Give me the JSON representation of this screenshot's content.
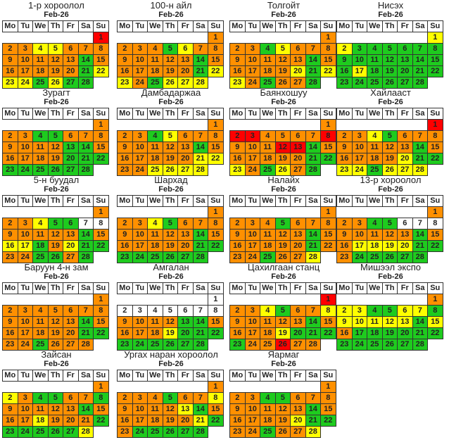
{
  "legend_colors": {
    "O": "#ff9000",
    "Y": "#ffff00",
    "G": "#1ecb1e",
    "R": "#ff0000",
    "W": "#ffffff"
  },
  "weekdays": [
    "Mo",
    "Tu",
    "We",
    "Th",
    "Fr",
    "Sa",
    "Su"
  ],
  "day_numbers": [
    "1",
    "2",
    "3",
    "4",
    "5",
    "6",
    "7",
    "8",
    "9",
    "10",
    "11",
    "12",
    "13",
    "14",
    "15",
    "16",
    "17",
    "18",
    "19",
    "20",
    "21",
    "22",
    "23",
    "24",
    "25",
    "26",
    "27",
    "28"
  ],
  "calendars": [
    {
      "name": "1-р хороолол",
      "month": "Feb-26",
      "colors": "ROOYYOOOOOOOOGOOOOOOGYYYGYGG"
    },
    {
      "name": "100-н айл",
      "month": "Feb-26",
      "colors": "OOOOGYOOOOOOOGOOOOOOGYYOGYYY"
    },
    {
      "name": "Толгойт",
      "month": "Feb-26",
      "colors": "OOOGYOOOOOOOOGOOOOOYGYYOGOOG"
    },
    {
      "name": "Нисэх",
      "month": "Feb-26",
      "colors": "YYGGGGGGGGGGGGGGYGGGGGGGGGGG"
    },
    {
      "name": "Зурагт",
      "month": "Feb-26",
      "colors": "OOOGGOOOOOOOGGOOOOOGGGGGGGGG"
    },
    {
      "name": "Дамбадаржаа",
      "month": "Feb-26",
      "colors": "OOOGYOOOOOOOOGOOOOOOYYOOYYYY"
    },
    {
      "name": "Баянхошуу",
      "month": "Feb-26",
      "colors": "ORROOOOROOORRGOOOOOOGGYOGYOG"
    },
    {
      "name": "Хайлааст",
      "month": "Feb-26",
      "colors": "ROOYGOOOOOOOOGOOOOOYGGYYGYYY"
    },
    {
      "name": "5-н буудал",
      "month": "Feb-26",
      "colors": "OOOYGGWWOOOOOGOYYGOYGGOOGGOG"
    },
    {
      "name": "Шархад",
      "month": "Feb-26",
      "colors": "OOOYGOOOOOOOOGOOOOOOGGGGGGGG"
    },
    {
      "name": "Налайх",
      "month": "Feb-26",
      "colors": "OOOOGOOOOOOOOGOOOOOOGOOOGOOY"
    },
    {
      "name": "13-р хороолол",
      "month": "Feb-26",
      "colors": "OOOGGWWWOOOOOGOOYYYYGGOGGGGG"
    },
    {
      "name": "Баруун 4-н зам",
      "month": "Feb-26",
      "colors": "OOOOOOOOOOOOOGOOOOOOGGOOGOOO"
    },
    {
      "name": "Амгалан",
      "month": "Feb-26",
      "colors": "WWWWWWWWOOOOGGOOOOYGGGGGGGGG"
    },
    {
      "name": "Цахилгаан станц",
      "month": "Feb-26",
      "colors": "ROOYGOOYOOOOOGOOOOYGGGGOOROO"
    },
    {
      "name": "Мишээл экспо",
      "month": "Feb-26",
      "colors": "OYYGGYYGYYYYYGYOGGGGGGGGGGGG"
    },
    {
      "name": "Зайсан",
      "month": "Feb-26",
      "colors": "OYOGGOOGOOOOOGOOOYOOOGGGGGGY"
    },
    {
      "name": "Ургах наран хороолол",
      "month": "Feb-26",
      "colors": "OOOOGOOYOOOOYGOOOOOOYGOGGGGG"
    },
    {
      "name": "Яармаг",
      "month": "Feb-26",
      "colors": "OOOGGOOOOOOOOGOOOOOYGGOOGOOY"
    }
  ]
}
